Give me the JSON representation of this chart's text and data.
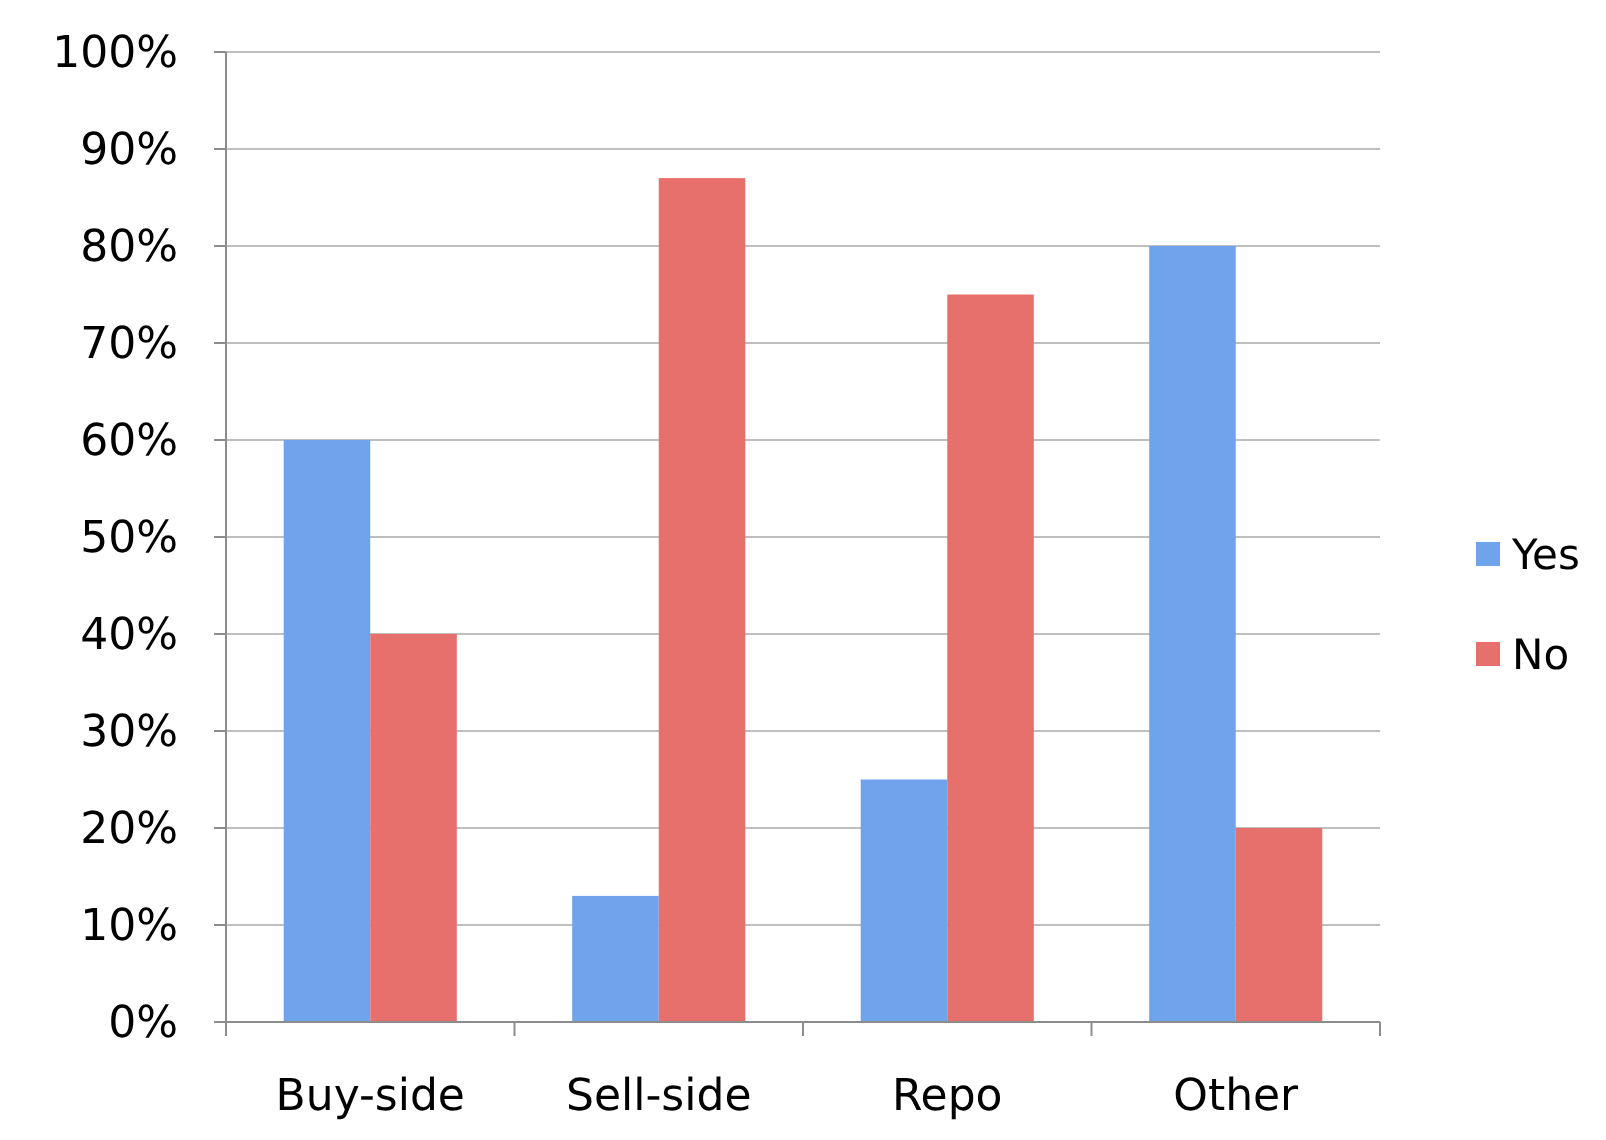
{
  "chart_data": {
    "type": "bar",
    "categories": [
      "Buy-side",
      "Sell-side",
      "Repo",
      "Other"
    ],
    "series": [
      {
        "name": "Yes",
        "color": "#6fa3ec",
        "values": [
          60,
          13,
          25,
          80
        ]
      },
      {
        "name": "No",
        "color": "#e8706c",
        "values": [
          40,
          87,
          75,
          20
        ]
      }
    ],
    "ylim": [
      0,
      100
    ],
    "yticks": [
      {
        "value": 0,
        "label": "0%"
      },
      {
        "value": 10,
        "label": "10%"
      },
      {
        "value": 20,
        "label": "20%"
      },
      {
        "value": 30,
        "label": "30%"
      },
      {
        "value": 40,
        "label": "40%"
      },
      {
        "value": 50,
        "label": "50%"
      },
      {
        "value": 60,
        "label": "60%"
      },
      {
        "value": 70,
        "label": "70%"
      },
      {
        "value": 80,
        "label": "80%"
      },
      {
        "value": 90,
        "label": "90%"
      },
      {
        "value": 100,
        "label": "100%"
      }
    ],
    "grid": "y",
    "legend": "right"
  }
}
